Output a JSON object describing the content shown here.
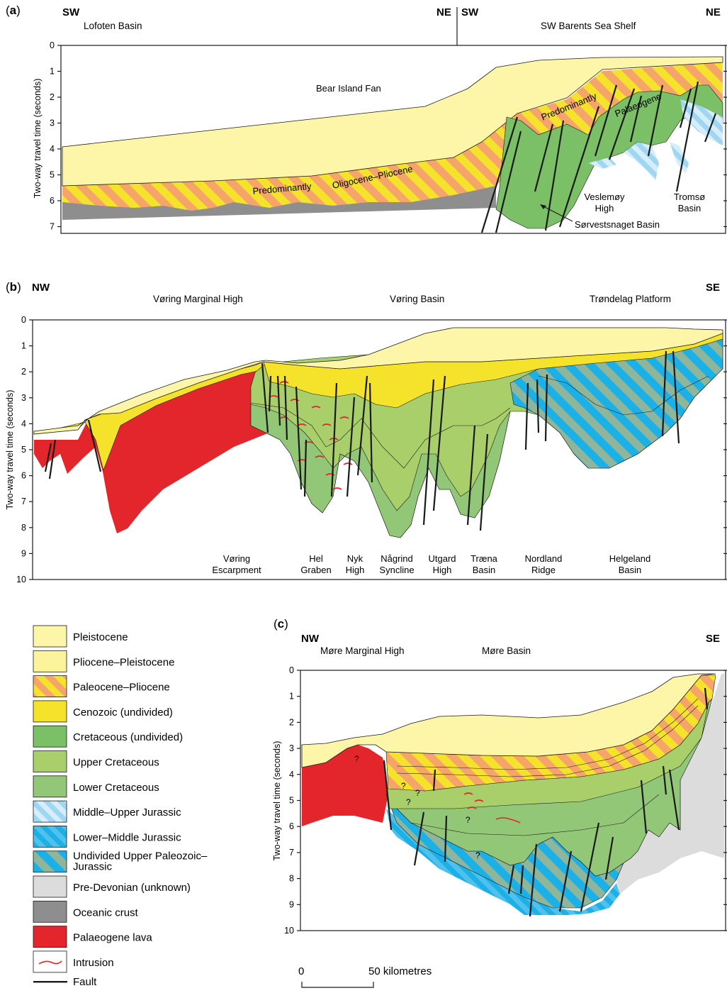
{
  "panels": {
    "a": {
      "letter": "a",
      "left_dir": "SW",
      "mid_dir_left": "NE",
      "mid_dir_right": "SW",
      "right_dir": "NE",
      "region_left": "Lofoten Basin",
      "region_right": "SW Barents Sea Shelf",
      "ylabel": "Two-way travel time (seconds)",
      "yticks": [
        "0",
        "1",
        "2",
        "3",
        "4",
        "5",
        "6",
        "7"
      ],
      "labels": {
        "bear_island_fan": "Bear Island Fan",
        "predominantly_1": "Predominantly",
        "oligocene_pliocene": "Oligocene–Pliocene",
        "predominantly_2": "Predominantly",
        "palaeogene": "Palaeogene",
        "veslemoy": [
          "Veslemøy",
          "High"
        ],
        "tromso": [
          "Tromsø",
          "Basin"
        ],
        "sorvestsnaget": "Sørvestsnaget Basin"
      }
    },
    "b": {
      "letter": "b",
      "left_dir": "NW",
      "right_dir": "SE",
      "region_1": "Vøring Marginal High",
      "region_2": "Vøring Basin",
      "region_3": "Trøndelag Platform",
      "ylabel": "Two-way travel time (seconds)",
      "yticks": [
        "0",
        "1",
        "2",
        "3",
        "4",
        "5",
        "6",
        "7",
        "8",
        "9",
        "10"
      ],
      "features": [
        [
          "Vøring",
          "Escarpment"
        ],
        [
          "Hel",
          "Graben"
        ],
        [
          "Nyk",
          "High"
        ],
        [
          "Någrind",
          "Syncline"
        ],
        [
          "Utgard",
          "High"
        ],
        [
          "Træna",
          "Basin"
        ],
        [
          "Nordland",
          "Ridge"
        ],
        [
          "Helgeland",
          "Basin"
        ]
      ]
    },
    "c": {
      "letter": "c",
      "left_dir": "NW",
      "right_dir": "SE",
      "region_1": "Møre Marginal High",
      "region_2": "Møre Basin",
      "ylabel": "Two-way travel time (seconds)",
      "yticks": [
        "0",
        "1",
        "2",
        "3",
        "4",
        "5",
        "6",
        "7",
        "8",
        "9",
        "10"
      ],
      "question_mark": "?"
    }
  },
  "legend": [
    {
      "label": "Pleistocene",
      "fill": "#fdf6a8"
    },
    {
      "label": "Pliocene–Pleistocene",
      "fill": "#fcf49c"
    },
    {
      "label": "Paleocene–Pliocene",
      "fill": "hatch-orange"
    },
    {
      "label": "Cenozoic (undivided)",
      "fill": "#f5e22a"
    },
    {
      "label": "Cretaceous (undivided)",
      "fill": "#7bbf66"
    },
    {
      "label": "Upper Cretaceous",
      "fill": "#a9cf6a"
    },
    {
      "label": "Lower Cretaceous",
      "fill": "#92c777"
    },
    {
      "label": "Middle–Upper Jurassic",
      "fill": "hatch-lightblue"
    },
    {
      "label": "Lower–Middle Jurassic",
      "fill": "hatch-blue"
    },
    {
      "label": "Undivided Upper Paleozoic–\nJurassic",
      "lines": [
        "Undivided Upper Paleozoic–",
        "Jurassic"
      ],
      "fill": "hatch-bluegreen"
    },
    {
      "label": "Pre-Devonian (unknown)",
      "fill": "#dcdcdc"
    },
    {
      "label": "Oceanic crust",
      "fill": "#8e8e8e"
    },
    {
      "label": "Palaeogene lava",
      "fill": "#e3262b"
    },
    {
      "label": "Intrusion",
      "fill": "intrusion"
    },
    {
      "label": "Fault",
      "fill": "fault"
    }
  ],
  "scale_bar": {
    "start": "0",
    "end": "50 kilometres"
  },
  "colors": {
    "pleistocene": "#fdf6a8",
    "cenozoic": "#f5e22a",
    "cretaceous": "#7bbf66",
    "upper_cretaceous": "#a9cf6a",
    "lower_cretaceous": "#92c777",
    "oceanic": "#8e8e8e",
    "lava": "#e3262b",
    "pre_devonian": "#dcdcdc",
    "orange": "#f5a56a",
    "blue": "#1bb0e6",
    "light_blue": "#a9dcf2"
  }
}
